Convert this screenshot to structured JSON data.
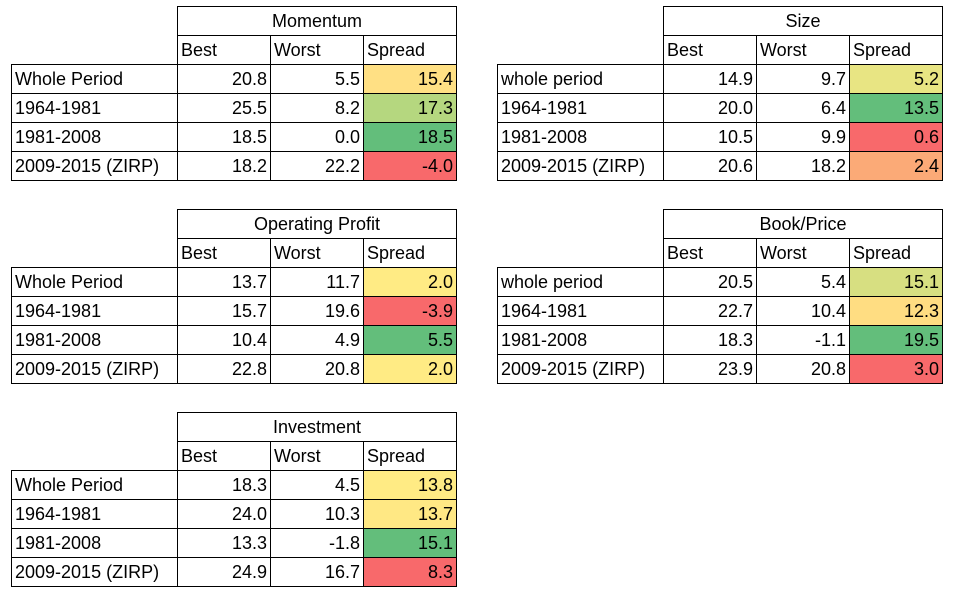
{
  "chart_data": [
    {
      "type": "table",
      "title": "Momentum",
      "columns": [
        "Best",
        "Worst",
        "Spread"
      ],
      "rows": [
        {
          "label": "Whole Period",
          "best": "20.8",
          "worst": "5.5",
          "spread": "15.4",
          "color": "#FFE084"
        },
        {
          "label": "1964-1981",
          "best": "25.5",
          "worst": "8.2",
          "spread": "17.3",
          "color": "#B5D77F"
        },
        {
          "label": "1981-2008",
          "best": "18.5",
          "worst": "0.0",
          "spread": "18.5",
          "color": "#63BE7B"
        },
        {
          "label": "2009-2015 (ZIRP)",
          "best": "18.2",
          "worst": "22.2",
          "spread": "-4.0",
          "color": "#F8696B"
        }
      ]
    },
    {
      "type": "table",
      "title": "Size",
      "columns": [
        "Best",
        "Worst",
        "Spread"
      ],
      "rows": [
        {
          "label": "whole period",
          "best": "14.9",
          "worst": "9.7",
          "spread": "5.2",
          "color": "#E8E583"
        },
        {
          "label": "1964-1981",
          "best": "20.0",
          "worst": "6.4",
          "spread": "13.5",
          "color": "#63BE7B"
        },
        {
          "label": "1981-2008",
          "best": "10.5",
          "worst": "9.9",
          "spread": "0.6",
          "color": "#F8696B"
        },
        {
          "label": "2009-2015 (ZIRP)",
          "best": "20.6",
          "worst": "18.2",
          "spread": "2.4",
          "color": "#FBAA77"
        }
      ]
    },
    {
      "type": "table",
      "title": "Operating Profit",
      "columns": [
        "Best",
        "Worst",
        "Spread"
      ],
      "rows": [
        {
          "label": "Whole Period",
          "best": "13.7",
          "worst": "11.7",
          "spread": "2.0",
          "color": "#FFEB84"
        },
        {
          "label": "1964-1981",
          "best": "15.7",
          "worst": "19.6",
          "spread": "-3.9",
          "color": "#F8696B"
        },
        {
          "label": "1981-2008",
          "best": "10.4",
          "worst": "4.9",
          "spread": "5.5",
          "color": "#63BE7B"
        },
        {
          "label": "2009-2015 (ZIRP)",
          "best": "22.8",
          "worst": "20.8",
          "spread": "2.0",
          "color": "#FFEB84"
        }
      ]
    },
    {
      "type": "table",
      "title": "Book/Price",
      "columns": [
        "Best",
        "Worst",
        "Spread"
      ],
      "rows": [
        {
          "label": "whole period",
          "best": "20.5",
          "worst": "5.4",
          "spread": "15.1",
          "color": "#D7DF81"
        },
        {
          "label": "1964-1981",
          "best": "22.7",
          "worst": "10.4",
          "spread": "12.3",
          "color": "#FFDD82"
        },
        {
          "label": "1981-2008",
          "best": "18.3",
          "worst": "-1.1",
          "spread": "19.5",
          "color": "#63BE7B"
        },
        {
          "label": "2009-2015 (ZIRP)",
          "best": "23.9",
          "worst": "20.8",
          "spread": "3.0",
          "color": "#F8696B"
        }
      ]
    },
    {
      "type": "table",
      "title": "Investment",
      "columns": [
        "Best",
        "Worst",
        "Spread"
      ],
      "rows": [
        {
          "label": "Whole Period",
          "best": "18.3",
          "worst": "4.5",
          "spread": "13.8",
          "color": "#FFEB84"
        },
        {
          "label": "1964-1981",
          "best": "24.0",
          "worst": "10.3",
          "spread": "13.7",
          "color": "#FFE884"
        },
        {
          "label": "1981-2008",
          "best": "13.3",
          "worst": "-1.8",
          "spread": "15.1",
          "color": "#63BE7B"
        },
        {
          "label": "2009-2015 (ZIRP)",
          "best": "24.9",
          "worst": "16.7",
          "spread": "8.3",
          "color": "#F8696B"
        }
      ]
    }
  ]
}
